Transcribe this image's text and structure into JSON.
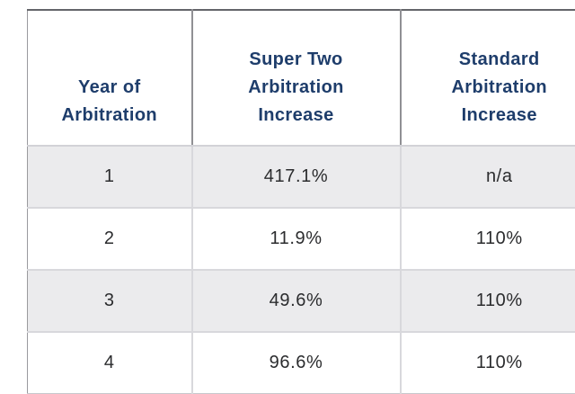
{
  "colors": {
    "header_text": "#1e3d6b",
    "body_text": "#2b2c2e",
    "alt_row_bg": "#ebebed",
    "top_border": "#64656a",
    "header_divider": "#909094",
    "light_divider": "#d8d8dc",
    "bottom_border": "#c7c7cc"
  },
  "table": {
    "headers": [
      "Year of\nArbitration",
      "Super Two\nArbitration\nIncrease",
      "Standard\nArbitration\nIncrease"
    ],
    "rows": [
      [
        "1",
        "417.1%",
        "n/a"
      ],
      [
        "2",
        "11.9%",
        "110%"
      ],
      [
        "3",
        "49.6%",
        "110%"
      ],
      [
        "4",
        "96.6%",
        "110%"
      ]
    ]
  },
  "chart_data": {
    "type": "table",
    "title": "",
    "columns": [
      "Year of Arbitration",
      "Super Two Arbitration Increase",
      "Standard Arbitration Increase"
    ],
    "rows": [
      [
        "1",
        "417.1%",
        "n/a"
      ],
      [
        "2",
        "11.9%",
        "110%"
      ],
      [
        "3",
        "49.6%",
        "110%"
      ],
      [
        "4",
        "96.6%",
        "110%"
      ]
    ]
  }
}
